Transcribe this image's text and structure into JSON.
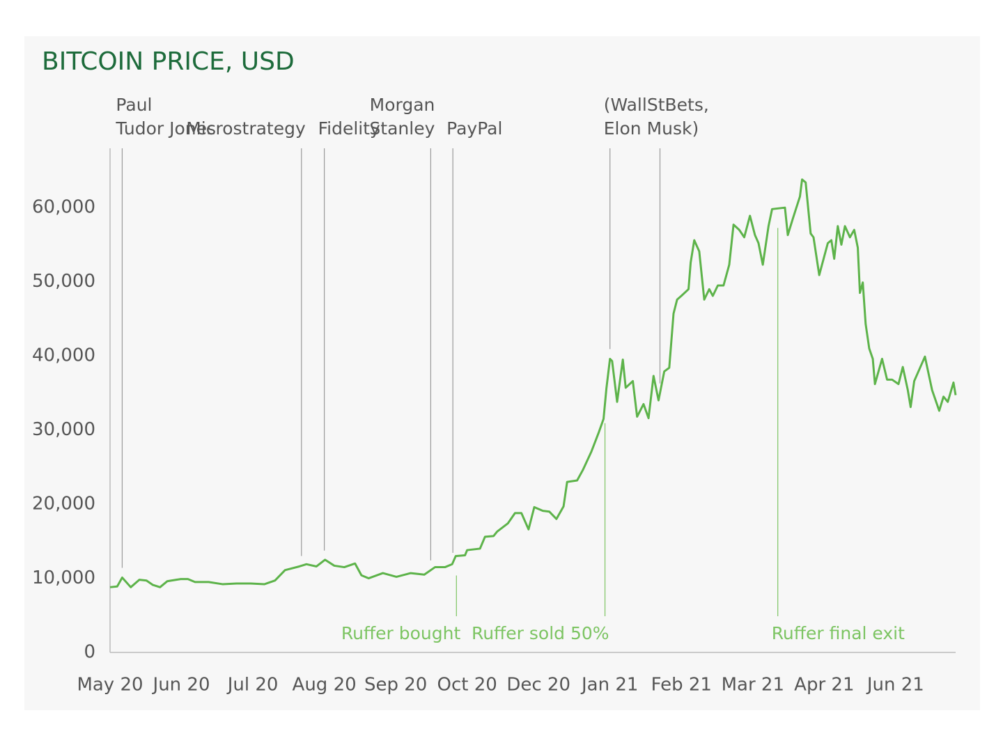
{
  "chart_data": {
    "type": "line",
    "title": "BITCOIN PRICE, USD",
    "color": "#5db34a",
    "x": [
      0,
      0.1,
      0.17,
      0.29,
      0.41,
      0.51,
      0.6,
      0.7,
      0.8,
      0.99,
      1.09,
      1.19,
      1.38,
      1.58,
      1.77,
      1.97,
      2.16,
      2.31,
      2.45,
      2.65,
      2.75,
      2.89,
      3.01,
      3.14,
      3.28,
      3.43,
      3.52,
      3.62,
      3.82,
      4.01,
      4.21,
      4.4,
      4.55,
      4.69,
      4.79,
      4.84,
      4.97,
      5.0,
      5.18,
      5.25,
      5.37,
      5.42,
      5.57,
      5.67,
      5.76,
      5.86,
      5.94,
      6.06,
      6.15,
      6.25,
      6.35,
      6.4,
      6.54,
      6.62,
      6.74,
      6.84,
      6.91,
      6.95,
      7.0,
      7.03,
      7.1,
      7.18,
      7.22,
      7.32,
      7.38,
      7.47,
      7.54,
      7.61,
      7.68,
      7.76,
      7.83,
      7.89,
      7.94,
      8.0,
      8.1,
      8.13,
      8.18,
      8.25,
      8.32,
      8.39,
      8.44,
      8.51,
      8.59,
      8.67,
      8.73,
      8.81,
      8.88,
      8.96,
      9.03,
      9.08,
      9.14,
      9.22,
      9.27,
      9.45,
      9.49,
      9.56,
      9.66,
      9.69,
      9.74,
      9.81,
      9.85,
      9.93,
      10.05,
      10.1,
      10.14,
      10.19,
      10.24,
      10.29,
      10.36,
      10.42,
      10.47,
      10.5,
      10.54,
      10.58,
      10.63,
      10.68,
      10.71,
      10.81,
      10.88,
      10.95,
      11.04,
      11.1,
      11.17,
      11.21,
      11.26,
      11.41,
      11.51,
      11.61,
      11.67,
      11.73,
      11.81,
      11.84
    ],
    "values": [
      8800,
      8900,
      10100,
      8800,
      9800,
      9700,
      9100,
      8800,
      9600,
      9900,
      9900,
      9500,
      9500,
      9200,
      9300,
      9300,
      9200,
      9700,
      11100,
      11600,
      11900,
      11600,
      12500,
      11700,
      11500,
      12000,
      10400,
      10000,
      10700,
      10200,
      10700,
      10500,
      11500,
      11500,
      11900,
      13000,
      13100,
      13800,
      14000,
      15600,
      15700,
      16300,
      17400,
      18800,
      18800,
      16600,
      19600,
      19100,
      19000,
      18000,
      19700,
      23000,
      23200,
      24600,
      27100,
      29600,
      31500,
      35600,
      39600,
      39300,
      33800,
      39500,
      35700,
      36600,
      31800,
      33500,
      31600,
      37300,
      34000,
      37900,
      38400,
      45700,
      47600,
      48100,
      49000,
      52600,
      55600,
      54100,
      47600,
      49000,
      48100,
      49500,
      49500,
      52300,
      57700,
      57000,
      56000,
      58900,
      56300,
      55200,
      52300,
      57500,
      59800,
      60000,
      56300,
      58500,
      61500,
      63800,
      63400,
      56500,
      56000,
      50900,
      55200,
      55600,
      53100,
      57500,
      55000,
      57500,
      56000,
      57000,
      54600,
      48500,
      49900,
      44300,
      41000,
      39600,
      36200,
      39600,
      36800,
      36800,
      36200,
      38500,
      35400,
      33100,
      36600,
      39900,
      35400,
      32600,
      34500,
      33800,
      36400,
      34700
    ],
    "xlim": [
      0,
      11.84
    ],
    "xticks": [
      {
        "value": 0,
        "label": "May 20"
      },
      {
        "value": 1,
        "label": "Jun 20"
      },
      {
        "value": 2,
        "label": "Jul 20"
      },
      {
        "value": 3,
        "label": "Aug 20"
      },
      {
        "value": 4,
        "label": "Sep 20"
      },
      {
        "value": 5,
        "label": "Oct 20"
      },
      {
        "value": 6,
        "label": "Dec 20"
      },
      {
        "value": 7,
        "label": "Jan 21"
      },
      {
        "value": 8,
        "label": "Feb 21"
      },
      {
        "value": 9,
        "label": "Mar 21"
      },
      {
        "value": 10,
        "label": "Apr 21"
      },
      {
        "value": 11,
        "label": "Jun 21"
      }
    ],
    "ylim": [
      0,
      68000
    ],
    "yticks": [
      0,
      {
        "value": 10000,
        "label": "10,000"
      },
      {
        "value": 20000,
        "label": "20,000"
      },
      {
        "value": 30000,
        "label": "30,000"
      },
      {
        "value": 40000,
        "label": "40,000"
      },
      {
        "value": 50000,
        "label": "50,000"
      },
      {
        "value": 60000,
        "label": "60,000"
      }
    ],
    "annotations": [
      {
        "lines": [
          "Paul",
          "Tudor Jones"
        ],
        "x": [
          0.17
        ],
        "position": "top",
        "align": "start",
        "color": "#9a9a9a"
      },
      {
        "lines": [
          "Microstrategy"
        ],
        "x": [
          2.68
        ],
        "position": "top",
        "align": "end",
        "color": "#9a9a9a"
      },
      {
        "lines": [
          "Fidelity"
        ],
        "x": [
          3.0
        ],
        "position": "top",
        "align": "start",
        "color": "#9a9a9a"
      },
      {
        "lines": [
          "Morgan",
          "Stanley"
        ],
        "x": [
          4.49
        ],
        "position": "top",
        "align": "end",
        "color": "#9a9a9a"
      },
      {
        "lines": [
          "PayPal"
        ],
        "x": [
          4.8
        ],
        "position": "top",
        "align": "start",
        "color": "#9a9a9a"
      },
      {
        "lines": [
          "(WallStBets,",
          "Elon Musk)"
        ],
        "x": [
          7.0,
          7.7
        ],
        "position": "top",
        "align": "start",
        "color": "#9a9a9a"
      },
      {
        "lines": [
          "Ruffer bought"
        ],
        "x": [
          4.85
        ],
        "position": "bottom",
        "align": "end",
        "color": "#7cc462"
      },
      {
        "lines": [
          "Ruffer sold 50%"
        ],
        "x": [
          6.93
        ],
        "position": "bottom",
        "align": "end",
        "color": "#7cc462"
      },
      {
        "lines": [
          "Ruffer final exit"
        ],
        "x": [
          9.35
        ],
        "position": "bottom",
        "align": "start",
        "color": "#7cc462"
      }
    ]
  }
}
